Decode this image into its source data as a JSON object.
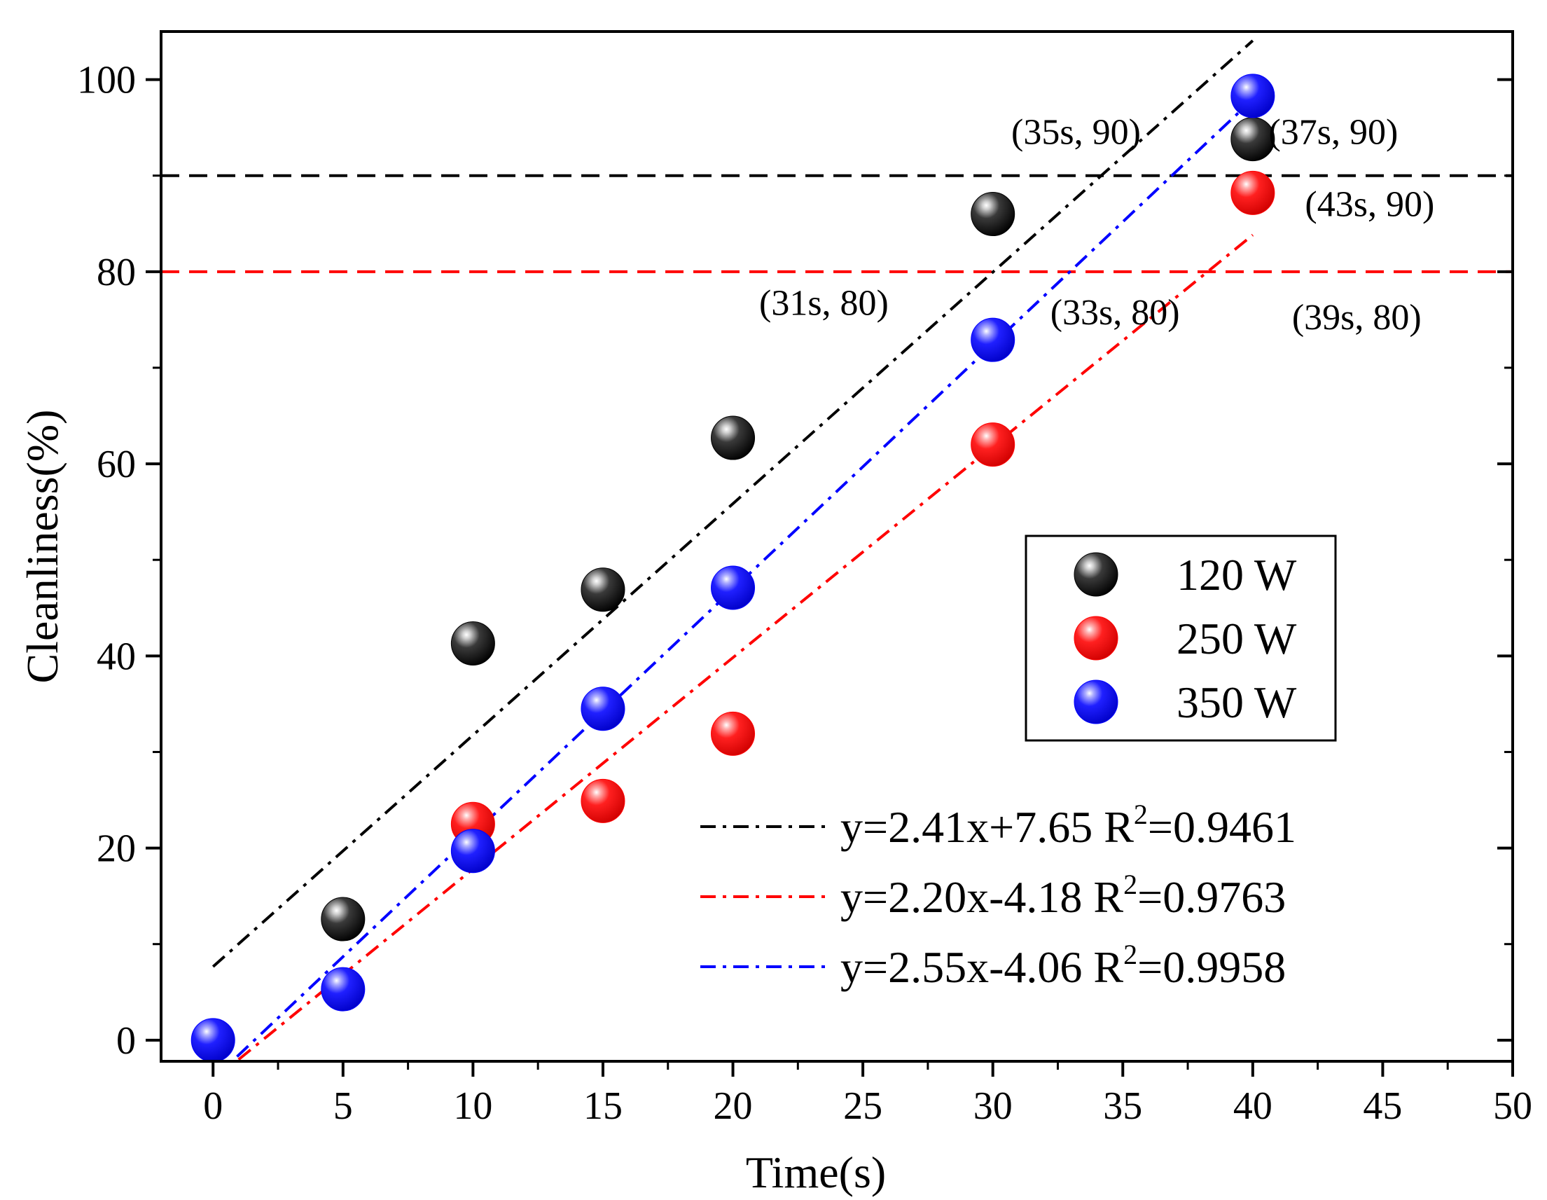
{
  "chart_data": {
    "type": "scatter",
    "xlabel": "Time(s)",
    "ylabel": "Cleanliness(%)",
    "xlim": [
      -2,
      50
    ],
    "ylim": [
      -2.2,
      105
    ],
    "xticks": [
      0,
      5,
      10,
      15,
      20,
      25,
      30,
      35,
      40,
      45,
      50
    ],
    "yticks": [
      0,
      20,
      40,
      60,
      80,
      100
    ],
    "series": [
      {
        "name": "120 W",
        "color": "#000000",
        "points": [
          [
            5,
            12.6
          ],
          [
            10,
            41.3
          ],
          [
            15,
            46.9
          ],
          [
            20,
            62.7
          ],
          [
            30,
            86.0
          ],
          [
            40,
            93.8
          ]
        ],
        "fit": {
          "slope": 2.41,
          "intercept": 7.65,
          "label": "y=2.41x+7.65 R",
          "r2_text": "=0.9461"
        }
      },
      {
        "name": "250 W",
        "color": "#ff0000",
        "points": [
          [
            10,
            22.5
          ],
          [
            15,
            24.9
          ],
          [
            20,
            31.9
          ],
          [
            30,
            62.0
          ],
          [
            40,
            88.2
          ]
        ],
        "fit": {
          "slope": 2.2,
          "intercept": -4.18,
          "label": "y=2.20x-4.18 R",
          "r2_text": "=0.9763"
        }
      },
      {
        "name": "350 W",
        "color": "#0000ff",
        "points": [
          [
            0,
            0.0
          ],
          [
            5,
            5.3
          ],
          [
            10,
            19.7
          ],
          [
            15,
            34.5
          ],
          [
            20,
            47.1
          ],
          [
            30,
            72.9
          ],
          [
            40,
            98.3
          ]
        ],
        "fit": {
          "slope": 2.55,
          "intercept": -4.06,
          "label": "y=2.55x-4.06 R",
          "r2_text": "=0.9958"
        }
      }
    ],
    "reference_lines": [
      {
        "y": 90,
        "color": "#000000"
      },
      {
        "y": 80,
        "color": "#ff0000"
      }
    ],
    "annotations": [
      {
        "text": "(35s, 90)",
        "x": 33.2,
        "y": 93.3
      },
      {
        "text": "(37s, 90)",
        "x": 43.1,
        "y": 93.3
      },
      {
        "text": "(43s, 90)",
        "x": 44.5,
        "y": 85.8
      },
      {
        "text": "(31s, 80)",
        "x": 23.5,
        "y": 75.5
      },
      {
        "text": "(33s, 80)",
        "x": 34.7,
        "y": 74.5
      },
      {
        "text": "(39s, 80)",
        "x": 44.0,
        "y": 74.0
      }
    ],
    "legend_position": "right"
  }
}
